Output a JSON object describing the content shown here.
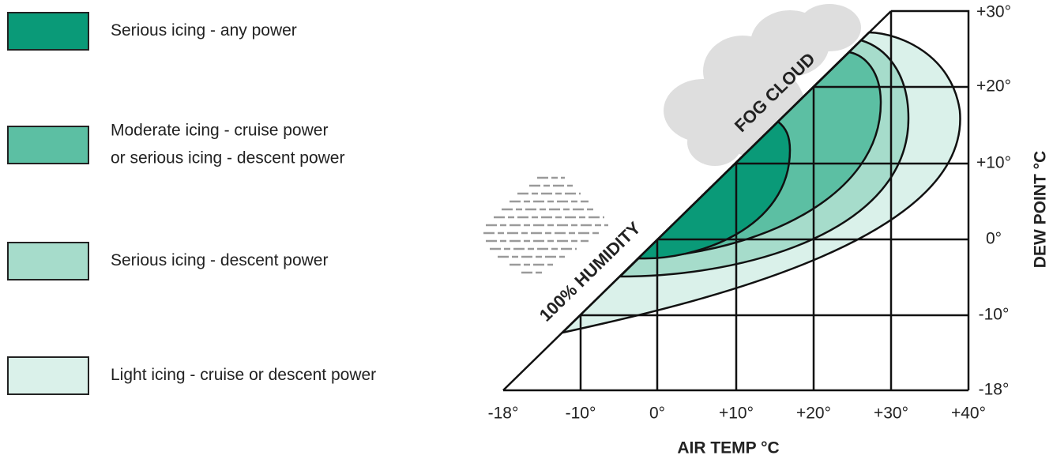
{
  "legend": [
    {
      "lines": [
        "Serious icing - any power"
      ]
    },
    {
      "lines": [
        "Moderate icing - cruise power",
        "or serious icing - descent power"
      ]
    },
    {
      "lines": [
        "Serious icing - descent power"
      ]
    },
    {
      "lines": [
        "Light icing - cruise or descent power"
      ]
    }
  ],
  "x_axis": {
    "title": "AIR TEMP °C",
    "ticks": [
      "-18°",
      "-10°",
      "0°",
      "+10°",
      "+20°",
      "+30°",
      "+40°"
    ]
  },
  "y_axis": {
    "title": "DEW POINT °C",
    "ticks": [
      "-18°",
      "-10°",
      "0°",
      "+10°",
      "+20°",
      "+30°"
    ]
  },
  "annotations": {
    "fog": "FOG CLOUD",
    "humidity": "100% HUMIDITY"
  }
}
